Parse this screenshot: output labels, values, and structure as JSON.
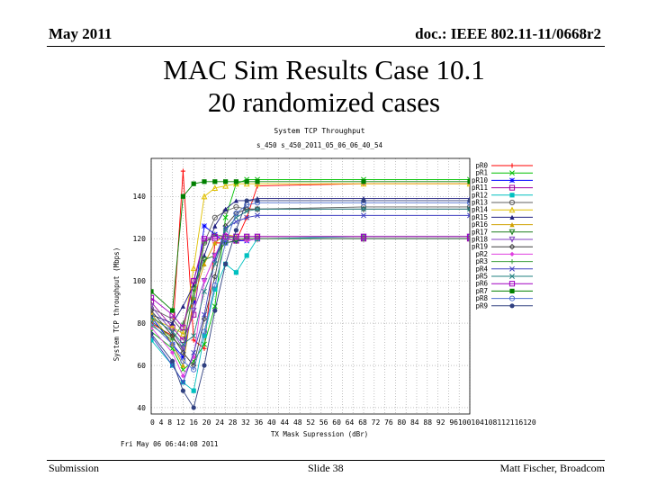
{
  "slide": {
    "header_left": "May 2011",
    "header_right": "doc.: IEEE 802.11-11/0668r2",
    "title_line1": "MAC Sim Results Case 10.1",
    "title_line2": "20 randomized cases",
    "footer_left": "Submission",
    "footer_center": "Slide 38",
    "footer_right": "Matt Fischer, Broadcom"
  },
  "chart_data": {
    "type": "line",
    "title": "System TCP Throughput",
    "subtitle": "s_450 s_450_2011_05_06_06_40_54",
    "xlabel": "TX Mask Supression (dBr)",
    "ylabel": "System TCP throughput (Mbps)",
    "timestamp": "Fri May 06 06:44:08 2011",
    "x": [
      0,
      4,
      8,
      12,
      16,
      20,
      24,
      28,
      32,
      36,
      40,
      44,
      48,
      52,
      56,
      60,
      64,
      68,
      72,
      76,
      80,
      84,
      88,
      92,
      96,
      100,
      104,
      108,
      112,
      116,
      120
    ],
    "x_tick_labels": [
      "0",
      "4",
      "8",
      "12",
      "16",
      "20",
      "24",
      "28",
      "32",
      "36",
      "40",
      "44",
      "48",
      "52",
      "56",
      "60",
      "64",
      "68",
      "72",
      "76",
      "80",
      "84",
      "88",
      "92",
      "96",
      "100",
      "104",
      "108",
      "112",
      "116",
      "120"
    ],
    "x_tick_text": "0 4 8 12 16 20 24 28 32 36 40 44 48 52 56 60 64 68 72 76 80 84 88 92 96100104108112116120",
    "y_ticks": [
      40,
      60,
      80,
      100,
      120,
      140
    ],
    "xlim": [
      0,
      120
    ],
    "ylim": [
      37,
      158
    ],
    "grid": true,
    "legend_position": "right",
    "series": [
      {
        "name": "pR0",
        "color": "#ff0000",
        "marker": "plus",
        "x": [
          0,
          8,
          12,
          16,
          20,
          24,
          28,
          32,
          36,
          40,
          80,
          120
        ],
        "values": [
          80,
          74,
          152,
          72,
          68,
          118,
          118,
          119,
          130,
          145,
          146,
          146
        ]
      },
      {
        "name": "pR1",
        "color": "#00c000",
        "marker": "x",
        "x": [
          0,
          8,
          12,
          16,
          20,
          24,
          28,
          32,
          36,
          40,
          80,
          120
        ],
        "values": [
          76,
          68,
          58,
          62,
          70,
          88,
          130,
          146,
          148,
          148,
          148,
          148
        ]
      },
      {
        "name": "pR10",
        "color": "#0000ff",
        "marker": "star",
        "x": [
          0,
          8,
          12,
          16,
          20,
          24,
          28,
          32,
          36,
          40,
          80,
          120
        ],
        "values": [
          83,
          70,
          64,
          90,
          126,
          122,
          118,
          119,
          119,
          120,
          120,
          120
        ]
      },
      {
        "name": "pR11",
        "color": "#a000a0",
        "marker": "box",
        "x": [
          0,
          8,
          12,
          16,
          20,
          24,
          28,
          32,
          36,
          40,
          80,
          120
        ],
        "values": [
          90,
          78,
          72,
          84,
          119,
          120,
          120,
          119,
          120,
          120,
          120,
          120
        ]
      },
      {
        "name": "pR12",
        "color": "#00c0c0",
        "marker": "fbox",
        "x": [
          0,
          8,
          12,
          16,
          20,
          24,
          28,
          32,
          36,
          40,
          80,
          120
        ],
        "values": [
          72,
          60,
          52,
          48,
          74,
          96,
          108,
          104,
          112,
          120,
          121,
          121
        ]
      },
      {
        "name": "pR13",
        "color": "#606060",
        "marker": "circle",
        "x": [
          0,
          8,
          12,
          16,
          20,
          24,
          28,
          32,
          36,
          40,
          80,
          120
        ],
        "values": [
          87,
          82,
          76,
          100,
          118,
          130,
          133,
          135,
          134,
          134,
          135,
          135
        ]
      },
      {
        "name": "pR14",
        "color": "#e0c000",
        "marker": "triangle",
        "x": [
          0,
          8,
          12,
          16,
          20,
          24,
          28,
          32,
          36,
          40,
          80,
          120
        ],
        "values": [
          82,
          78,
          75,
          106,
          140,
          144,
          145,
          146,
          146,
          146,
          146,
          146
        ]
      },
      {
        "name": "pR15",
        "color": "#202080",
        "marker": "ftri",
        "x": [
          0,
          8,
          12,
          16,
          20,
          24,
          28,
          32,
          36,
          40,
          80,
          120
        ],
        "values": [
          84,
          80,
          88,
          98,
          112,
          126,
          134,
          138,
          138,
          139,
          139,
          139
        ]
      },
      {
        "name": "pR16",
        "color": "#d0a000",
        "marker": "ftri",
        "x": [
          0,
          8,
          12,
          16,
          20,
          24,
          28,
          32,
          36,
          40,
          80,
          120
        ],
        "values": [
          85,
          70,
          60,
          92,
          108,
          118,
          122,
          121,
          121,
          121,
          121,
          121
        ]
      },
      {
        "name": "pR17",
        "color": "#208020",
        "marker": "dtri",
        "x": [
          0,
          8,
          12,
          16,
          20,
          24,
          28,
          32,
          36,
          40,
          80,
          120
        ],
        "values": [
          81,
          73,
          68,
          96,
          110,
          112,
          118,
          119,
          120,
          120,
          120,
          120
        ]
      },
      {
        "name": "pR18",
        "color": "#8040c0",
        "marker": "dtri",
        "x": [
          0,
          8,
          12,
          16,
          20,
          24,
          28,
          32,
          36,
          40,
          80,
          120
        ],
        "values": [
          88,
          76,
          68,
          86,
          100,
          112,
          120,
          121,
          121,
          121,
          121,
          121
        ]
      },
      {
        "name": "pR19",
        "color": "#404040",
        "marker": "diamond",
        "x": [
          0,
          8,
          12,
          16,
          20,
          24,
          28,
          32,
          36,
          40,
          80,
          120
        ],
        "values": [
          86,
          74,
          66,
          60,
          82,
          102,
          126,
          132,
          134,
          134,
          134,
          134
        ]
      },
      {
        "name": "pR2",
        "color": "#e040e0",
        "marker": "fdiamond",
        "x": [
          0,
          8,
          12,
          16,
          20,
          24,
          28,
          32,
          36,
          40,
          80,
          120
        ],
        "values": [
          78,
          66,
          55,
          64,
          100,
          112,
          122,
          120,
          119,
          120,
          120,
          120
        ]
      },
      {
        "name": "pR3",
        "color": "#40a040",
        "marker": "plus",
        "x": [
          0,
          8,
          12,
          16,
          20,
          24,
          28,
          32,
          36,
          40,
          80,
          120
        ],
        "values": [
          79,
          72,
          80,
          92,
          118,
          122,
          121,
          120,
          120,
          120,
          120,
          120
        ]
      },
      {
        "name": "pR4",
        "color": "#4040c0",
        "marker": "x",
        "x": [
          0,
          8,
          12,
          16,
          20,
          24,
          28,
          32,
          36,
          40,
          80,
          120
        ],
        "values": [
          74,
          60,
          52,
          66,
          84,
          110,
          125,
          128,
          130,
          131,
          131,
          131
        ]
      },
      {
        "name": "pR5",
        "color": "#208080",
        "marker": "x",
        "x": [
          0,
          8,
          12,
          16,
          20,
          24,
          28,
          32,
          36,
          40,
          80,
          120
        ],
        "values": [
          83,
          76,
          70,
          74,
          95,
          108,
          124,
          130,
          133,
          134,
          134,
          134
        ]
      },
      {
        "name": "pR6",
        "color": "#a000c0",
        "marker": "box",
        "x": [
          0,
          8,
          12,
          16,
          20,
          24,
          28,
          32,
          36,
          40,
          80,
          120
        ],
        "values": [
          92,
          84,
          78,
          100,
          120,
          121,
          121,
          121,
          121,
          121,
          121,
          121
        ]
      },
      {
        "name": "pR7",
        "color": "#008000",
        "marker": "fbox",
        "x": [
          0,
          8,
          12,
          16,
          20,
          24,
          28,
          32,
          36,
          40,
          80,
          120
        ],
        "values": [
          95,
          86,
          140,
          146,
          147,
          147,
          147,
          147,
          147,
          147,
          147,
          147
        ]
      },
      {
        "name": "pR8",
        "color": "#5070d0",
        "marker": "circle",
        "x": [
          0,
          8,
          12,
          16,
          20,
          24,
          28,
          32,
          36,
          40,
          80,
          120
        ],
        "values": [
          80,
          70,
          62,
          58,
          76,
          98,
          118,
          132,
          136,
          137,
          137,
          137
        ]
      },
      {
        "name": "pR9",
        "color": "#304080",
        "marker": "fcircle",
        "x": [
          0,
          8,
          12,
          16,
          20,
          24,
          28,
          32,
          36,
          40,
          80,
          120
        ],
        "values": [
          75,
          62,
          48,
          40,
          60,
          86,
          108,
          124,
          138,
          138,
          138,
          138
        ]
      }
    ]
  }
}
